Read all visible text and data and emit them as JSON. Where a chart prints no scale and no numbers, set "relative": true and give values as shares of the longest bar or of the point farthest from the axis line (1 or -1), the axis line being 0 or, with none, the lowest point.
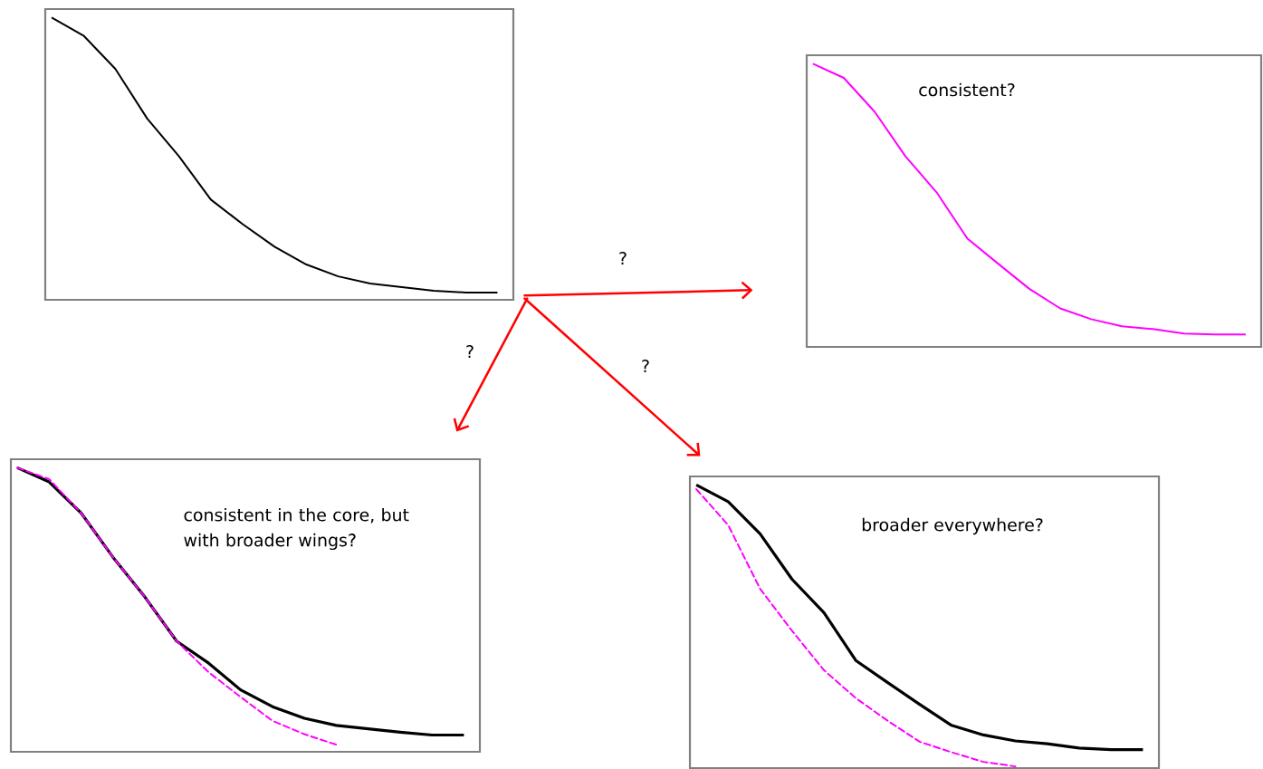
{
  "chart_data": [
    {
      "type": "line",
      "relative": true,
      "categories": [
        null,
        null,
        null,
        null,
        null,
        null,
        null,
        null,
        null,
        null,
        null,
        null,
        null,
        null,
        null
      ],
      "annotations": [
        "?",
        "?",
        "?"
      ],
      "series": [
        {
          "color": "#000000",
          "line_style": "solid",
          "values": [
            1,
            0.936,
            0.818,
            0.642,
            0.508,
            0.355,
            0.268,
            0.188,
            0.125,
            0.083,
            0.058,
            0.045,
            0.032,
            0.026,
            0.026
          ]
        }
      ]
    },
    {
      "type": "line",
      "relative": true,
      "categories": [
        null,
        null,
        null,
        null,
        null,
        null,
        null,
        null,
        null,
        null,
        null,
        null,
        null,
        null,
        null
      ],
      "annotations": [
        "consistent?"
      ],
      "series": [
        {
          "color": "#ff00ff",
          "line_style": "solid",
          "values": [
            1,
            0.95,
            0.83,
            0.672,
            0.546,
            0.382,
            0.293,
            0.205,
            0.136,
            0.098,
            0.073,
            0.063,
            0.047,
            0.044,
            0.044
          ]
        }
      ]
    },
    {
      "type": "line",
      "relative": true,
      "categories": [
        null,
        null,
        null,
        null,
        null,
        null,
        null,
        null,
        null,
        null,
        null,
        null,
        null,
        null,
        null
      ],
      "annotations": [
        "consistent in the core, but with broader wings?"
      ],
      "series": [
        {
          "color": "#000000",
          "line_style": "solid",
          "values": [
            1,
            0.95,
            0.841,
            0.685,
            0.545,
            0.389,
            0.312,
            0.218,
            0.159,
            0.118,
            0.093,
            0.081,
            0.069,
            0.059,
            0.059
          ]
        },
        {
          "color": "#ff00ff",
          "line_style": "dashed",
          "values": [
            1,
            0.96,
            0.841,
            0.685,
            0.545,
            0.389,
            0.28,
            0.193,
            0.109,
            0.062,
            0.025,
            null,
            null,
            null,
            null
          ]
        }
      ]
    },
    {
      "type": "line",
      "relative": true,
      "categories": [
        null,
        null,
        null,
        null,
        null,
        null,
        null,
        null,
        null,
        null,
        null,
        null,
        null,
        null,
        null
      ],
      "annotations": [
        "broader everywhere?"
      ],
      "series": [
        {
          "color": "#000000",
          "line_style": "solid",
          "values": [
            1,
            0.941,
            0.827,
            0.667,
            0.549,
            0.38,
            0.302,
            0.225,
            0.151,
            0.117,
            0.096,
            0.086,
            0.071,
            0.065,
            0.065
          ]
        },
        {
          "color": "#ff00ff",
          "line_style": "dashed",
          "values": [
            0.985,
            0.858,
            0.633,
            0.485,
            0.346,
            0.247,
            0.167,
            0.093,
            0.056,
            0.022,
            0.006,
            null,
            null,
            null,
            null
          ]
        }
      ]
    }
  ]
}
